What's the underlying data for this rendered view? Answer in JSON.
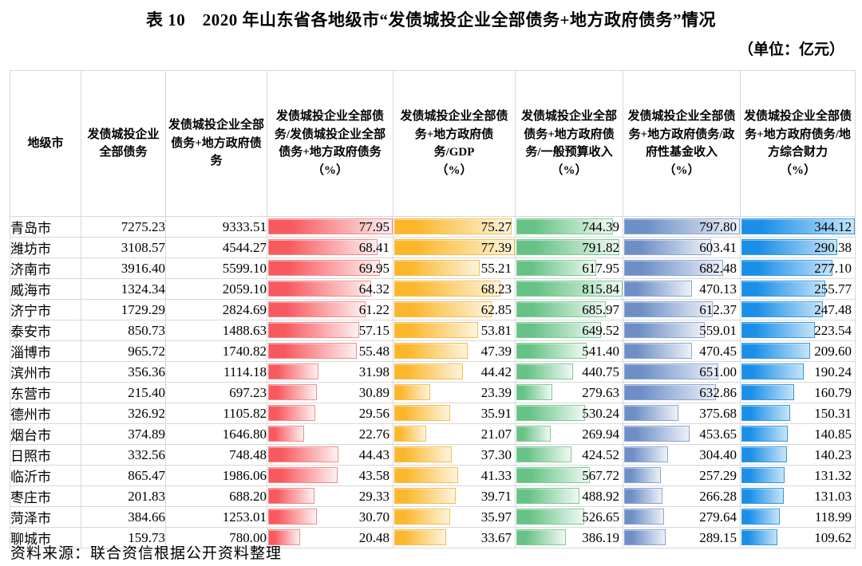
{
  "title": "表 10　2020 年山东省各地级市“发债城投企业全部债务+地方政府债务”情况",
  "unit_note": "（单位：亿元）",
  "source_note": "资料来源：联合资信根据公开资料整理",
  "table": {
    "columns": [
      {
        "label": "地级市",
        "unit": "",
        "type": "text"
      },
      {
        "label": "发债城投企业全部债务",
        "unit": "",
        "type": "num"
      },
      {
        "label": "发债城投企业全部债务+地方政府债务",
        "unit": "",
        "type": "num"
      },
      {
        "label": "发债城投企业全部债务/发债城投企业全部债务+地方政府债务",
        "unit": "（%）",
        "type": "bar",
        "bar_color": "red",
        "max": 77.95
      },
      {
        "label": "发债城投企业全部债务+地方政府债务/GDP",
        "unit": "（%）",
        "type": "bar",
        "bar_color": "orange",
        "max": 77.39
      },
      {
        "label": "发债城投企业全部债务+地方政府债务/一般预算收入",
        "unit": "（%）",
        "type": "bar",
        "bar_color": "green",
        "max": 815.84
      },
      {
        "label": "发债城投企业全部债务+地方政府债务/政府性基金收入",
        "unit": "（%）",
        "type": "bar",
        "bar_color": "slate",
        "max": 797.8
      },
      {
        "label": "发债城投企业全部债务+地方政府债务/地方综合财力",
        "unit": "（%）",
        "type": "bar",
        "bar_color": "blue",
        "max": 344.12
      }
    ],
    "bar_colors": {
      "red": {
        "base": "#f8595f",
        "border": "#f5898b",
        "fade": "#fdf1f1"
      },
      "orange": {
        "base": "#fbb72c",
        "border": "#f8bc4a",
        "fade": "#fdf4dd"
      },
      "green": {
        "base": "#66c285",
        "border": "#7bcb95",
        "fade": "#f0f9f3"
      },
      "slate": {
        "base": "#6d8fc6",
        "border": "#8aa3d2",
        "fade": "#edf1f9"
      },
      "blue": {
        "base": "#1b8fe8",
        "border": "#3399e0",
        "fade": "#c6e4f8"
      }
    },
    "rows": [
      {
        "city": "青岛市",
        "values": [
          "7275.23",
          "9333.51",
          "77.95",
          "75.27",
          "744.39",
          "797.80",
          "344.12"
        ]
      },
      {
        "city": "潍坊市",
        "values": [
          "3108.57",
          "4544.27",
          "68.41",
          "77.39",
          "791.82",
          "603.41",
          "290.38"
        ]
      },
      {
        "city": "济南市",
        "values": [
          "3916.40",
          "5599.10",
          "69.95",
          "55.21",
          "617.95",
          "682.48",
          "277.10"
        ]
      },
      {
        "city": "威海市",
        "values": [
          "1324.34",
          "2059.10",
          "64.32",
          "68.23",
          "815.84",
          "470.13",
          "255.77"
        ]
      },
      {
        "city": "济宁市",
        "values": [
          "1729.29",
          "2824.69",
          "61.22",
          "62.85",
          "685.97",
          "612.37",
          "247.48"
        ]
      },
      {
        "city": "泰安市",
        "values": [
          "850.73",
          "1488.63",
          "57.15",
          "53.81",
          "649.52",
          "559.01",
          "223.54"
        ]
      },
      {
        "city": "淄博市",
        "values": [
          "965.72",
          "1740.82",
          "55.48",
          "47.39",
          "541.40",
          "470.45",
          "209.60"
        ]
      },
      {
        "city": "滨州市",
        "values": [
          "356.36",
          "1114.18",
          "31.98",
          "44.42",
          "440.75",
          "651.00",
          "190.24"
        ]
      },
      {
        "city": "东营市",
        "values": [
          "215.40",
          "697.23",
          "30.89",
          "23.39",
          "279.63",
          "632.86",
          "160.79"
        ]
      },
      {
        "city": "德州市",
        "values": [
          "326.92",
          "1105.82",
          "29.56",
          "35.91",
          "530.24",
          "375.68",
          "150.31"
        ]
      },
      {
        "city": "烟台市",
        "values": [
          "374.89",
          "1646.80",
          "22.76",
          "21.07",
          "269.94",
          "453.65",
          "140.85"
        ]
      },
      {
        "city": "日照市",
        "values": [
          "332.56",
          "748.48",
          "44.43",
          "37.30",
          "424.52",
          "304.40",
          "140.23"
        ]
      },
      {
        "city": "临沂市",
        "values": [
          "865.47",
          "1986.06",
          "43.58",
          "41.33",
          "567.72",
          "257.29",
          "131.32"
        ]
      },
      {
        "city": "枣庄市",
        "values": [
          "201.83",
          "688.20",
          "29.33",
          "39.71",
          "488.92",
          "266.28",
          "131.03"
        ]
      },
      {
        "city": "菏泽市",
        "values": [
          "384.66",
          "1253.01",
          "30.70",
          "35.97",
          "526.65",
          "279.64",
          "118.99"
        ]
      },
      {
        "city": "聊城市",
        "values": [
          "159.73",
          "780.00",
          "20.48",
          "33.67",
          "386.19",
          "289.15",
          "109.62"
        ]
      }
    ]
  }
}
